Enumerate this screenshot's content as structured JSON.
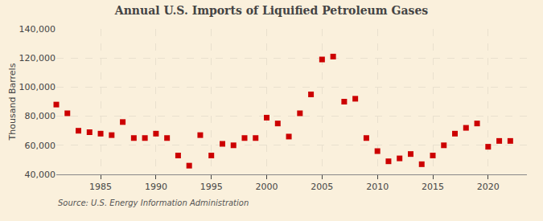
{
  "chart_data": {
    "type": "scatter",
    "title": "Annual U.S. Imports of Liquified Petroleum Gases",
    "ylabel": "Thousand Barrels",
    "annotations": [
      "Source: U.S. Energy Information Administration"
    ],
    "color": "#cc0000",
    "marker": "square",
    "grid": true,
    "x": [
      1981,
      1982,
      1983,
      1984,
      1985,
      1986,
      1987,
      1988,
      1989,
      1990,
      1991,
      1992,
      1993,
      1994,
      1995,
      1996,
      1997,
      1998,
      1999,
      2000,
      2001,
      2002,
      2003,
      2004,
      2005,
      2006,
      2007,
      2008,
      2009,
      2010,
      2011,
      2012,
      2013,
      2014,
      2015,
      2016,
      2017,
      2018,
      2019,
      2020,
      2021,
      2022
    ],
    "values": [
      88000,
      82000,
      70000,
      69000,
      68000,
      67000,
      76000,
      65000,
      65000,
      68000,
      65000,
      53000,
      46000,
      67000,
      53000,
      61000,
      60000,
      65000,
      65000,
      79000,
      75000,
      66000,
      82000,
      95000,
      119000,
      121000,
      90000,
      92000,
      65000,
      56000,
      49000,
      51000,
      54000,
      47000,
      53000,
      60000,
      68000,
      72000,
      75000,
      59000,
      63000,
      63000
    ],
    "xlim": [
      1981.0,
      2023.5
    ],
    "xticks": [
      1985,
      1990,
      1995,
      2000,
      2005,
      2010,
      2015,
      2020
    ],
    "ylim": [
      40000,
      140000
    ],
    "yticks": [
      {
        "value": 40000,
        "label": "40,000"
      },
      {
        "value": 60000,
        "label": "60,000"
      },
      {
        "value": 80000,
        "label": "80,000"
      },
      {
        "value": 100000,
        "label": "100,000"
      },
      {
        "value": 120000,
        "label": "120,000"
      },
      {
        "value": 140000,
        "label": "140,000"
      }
    ]
  }
}
